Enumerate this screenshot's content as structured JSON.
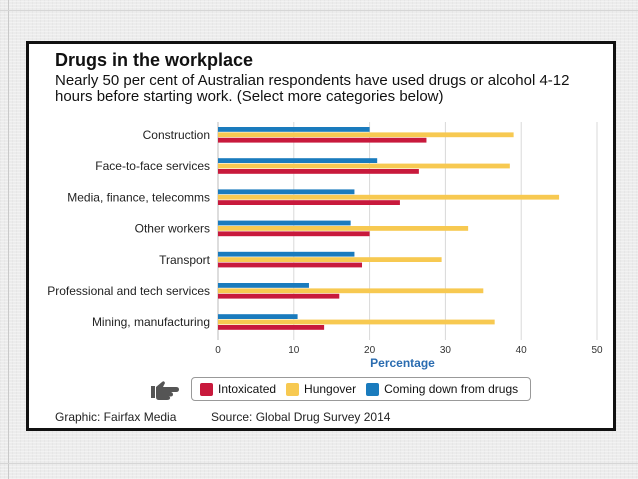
{
  "colors": {
    "intoxicated": "#c8193c",
    "hungover": "#f7c951",
    "coming_down": "#1a7bbd",
    "gridline": "#d9d9d9",
    "axis_label": "#2a6cb0",
    "hand": "#555555"
  },
  "legend": {
    "intoxicated": "Intoxicated",
    "hungover": "Hungover",
    "coming_down": "Coming down from drugs",
    "hand_icon": "pointing-hand-icon"
  },
  "footer": {
    "graphic": "Graphic: Fairfax Media",
    "source": "Source: Global Drug Survey 2014"
  },
  "chart_data": {
    "type": "bar",
    "orientation": "horizontal",
    "title": "Drugs in the workplace",
    "subtitle": "Nearly 50 per cent of Australian respondents have used drugs or alcohol 4-12 hours before starting work. (Select more categories below)",
    "xlabel": "Percentage",
    "ylabel": "",
    "xlim": [
      0,
      50
    ],
    "xticks": [
      0,
      10,
      20,
      30,
      40,
      50
    ],
    "grid": true,
    "legend_position": "bottom",
    "categories": [
      "Construction",
      "Face-to-face services",
      "Media, finance, telecomms",
      "Other workers",
      "Transport",
      "Professional and tech services",
      "Mining, manufacturing"
    ],
    "series": [
      {
        "name": "Coming down from drugs",
        "key": "coming_down",
        "values": [
          20,
          21,
          18,
          17.5,
          18,
          12,
          10.5
        ]
      },
      {
        "name": "Hungover",
        "key": "hungover",
        "values": [
          39,
          38.5,
          45,
          33,
          29.5,
          35,
          36.5
        ]
      },
      {
        "name": "Intoxicated",
        "key": "intoxicated",
        "values": [
          27.5,
          26.5,
          24,
          20,
          19,
          16,
          14
        ]
      }
    ]
  }
}
